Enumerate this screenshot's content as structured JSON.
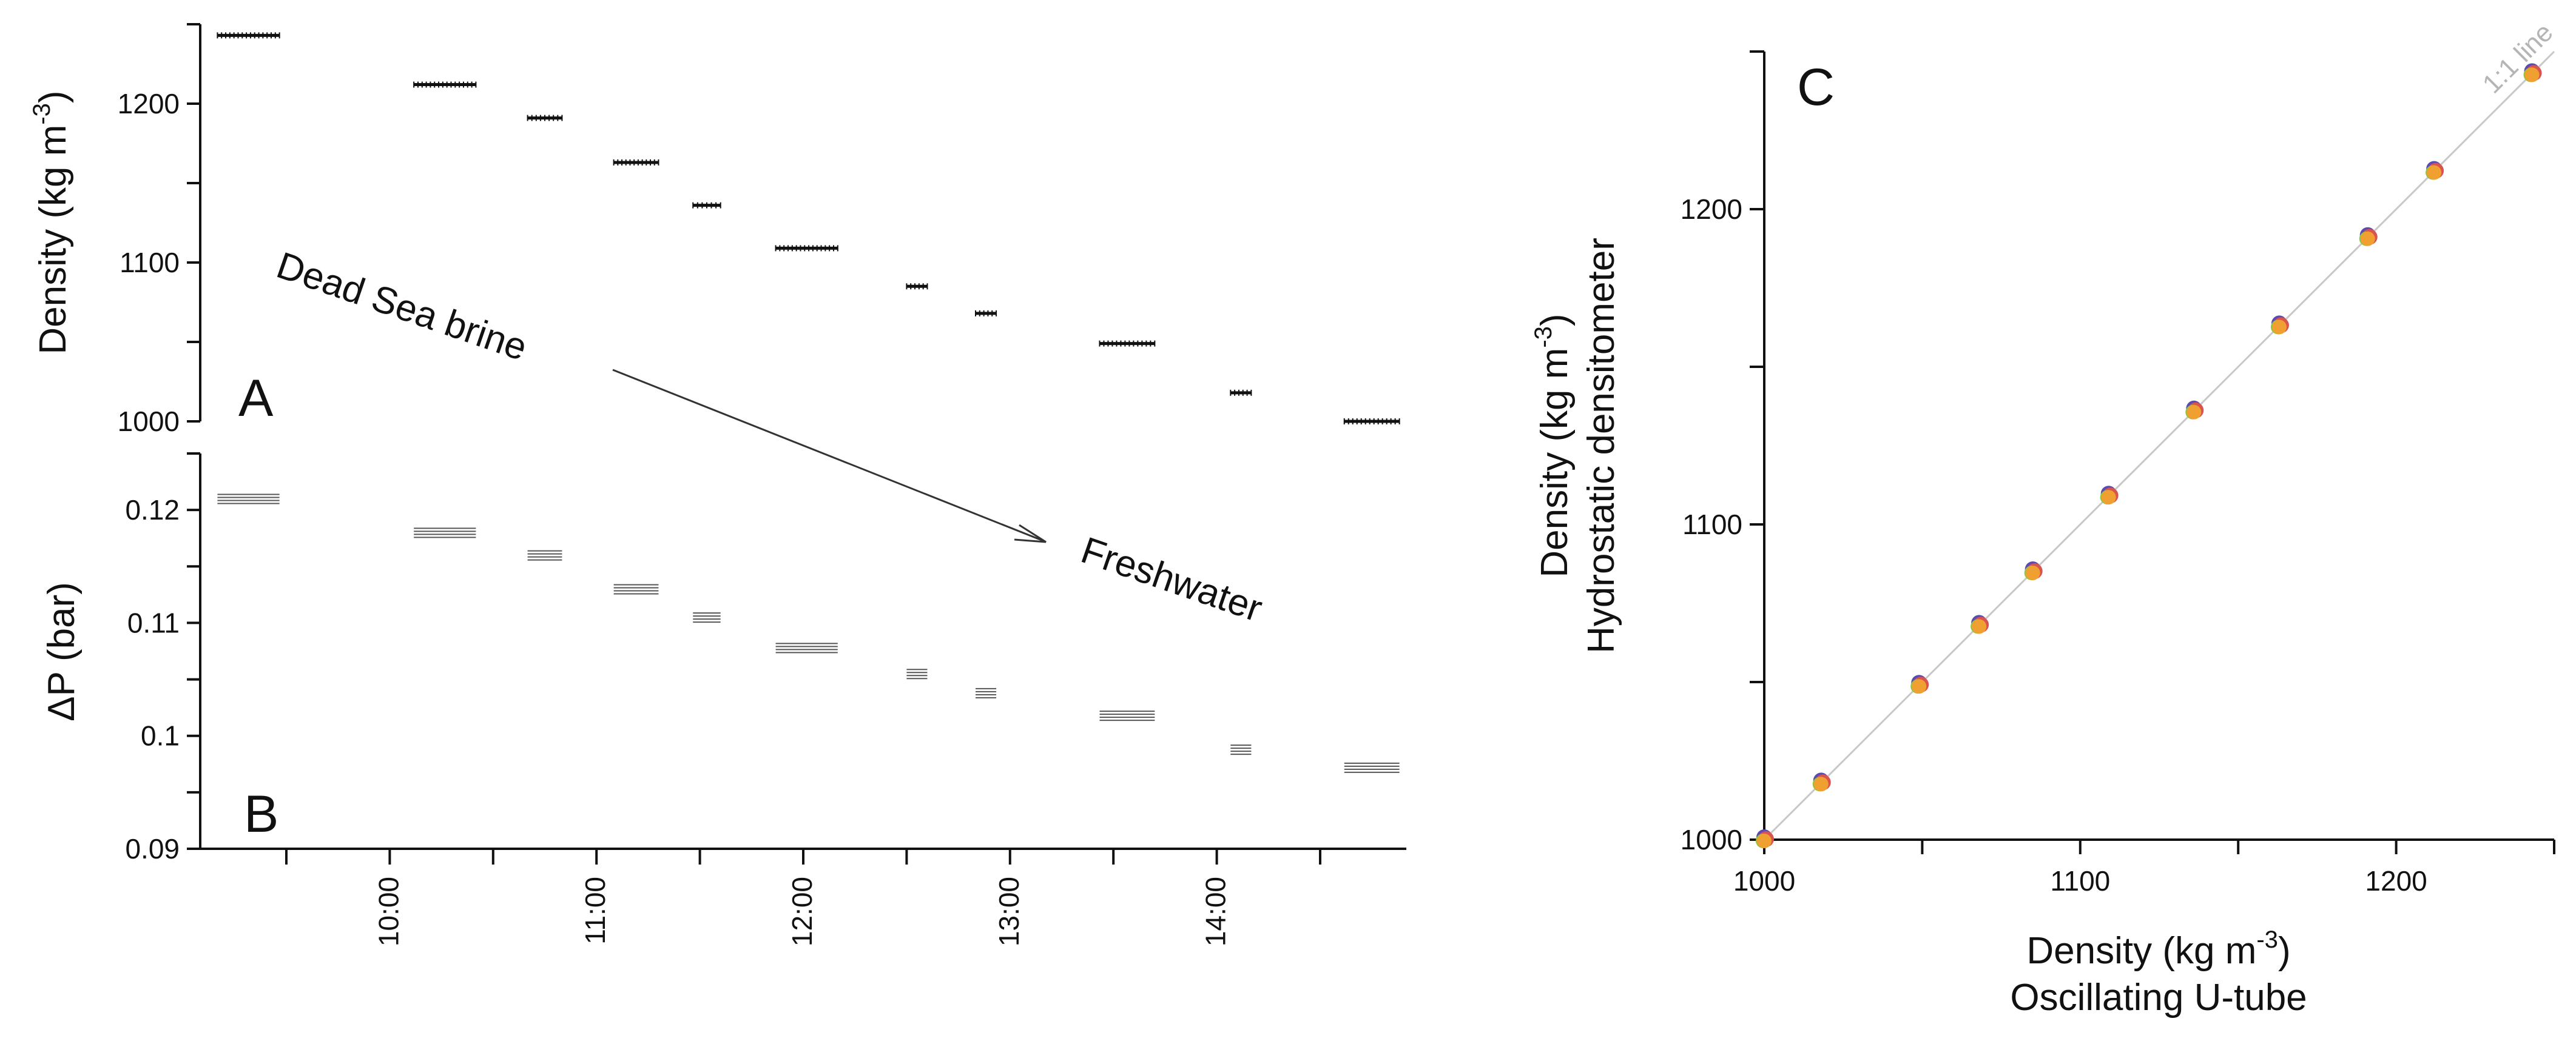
{
  "chart_data": [
    {
      "id": "A",
      "type": "scatter",
      "panel_label": "A",
      "ylabel_main": "Density (kg m",
      "ylabel_sup": "-3",
      "ylabel_end": ")",
      "ylim": [
        1000,
        1250
      ],
      "yticks": [
        1000,
        1100,
        1200
      ],
      "x_axis": "time (shared with B)",
      "annotations": {
        "start": "Dead Sea brine",
        "end": "Freshwater"
      },
      "groups": [
        {
          "t_start": "09:10",
          "t_end": "09:28",
          "value": 1243
        },
        {
          "t_start": "10:07",
          "t_end": "10:25",
          "value": 1212
        },
        {
          "t_start": "10:40",
          "t_end": "10:50",
          "value": 1191
        },
        {
          "t_start": "11:05",
          "t_end": "11:18",
          "value": 1163
        },
        {
          "t_start": "11:28",
          "t_end": "11:36",
          "value": 1136
        },
        {
          "t_start": "11:52",
          "t_end": "12:10",
          "value": 1109
        },
        {
          "t_start": "12:30",
          "t_end": "12:36",
          "value": 1085
        },
        {
          "t_start": "12:50",
          "t_end": "12:56",
          "value": 1068
        },
        {
          "t_start": "13:26",
          "t_end": "13:42",
          "value": 1049
        },
        {
          "t_start": "14:04",
          "t_end": "14:10",
          "value": 1018
        },
        {
          "t_start": "14:37",
          "t_end": "14:53",
          "value": 1000
        }
      ]
    },
    {
      "id": "B",
      "type": "scatter",
      "panel_label": "B",
      "ylabel": "ΔP (bar)",
      "ylim": [
        0.09,
        0.125
      ],
      "yticks": [
        "0.09",
        "0.1",
        "0.11",
        "0.12"
      ],
      "xticks": [
        "10:00",
        "11:00",
        "12:00",
        "13:00",
        "14:00"
      ],
      "xtick_minutes": [
        600,
        660,
        720,
        780,
        840
      ],
      "xlim_minutes": [
        545,
        895
      ],
      "groups": [
        {
          "t_start": "09:10",
          "t_end": "09:28",
          "value": 0.121
        },
        {
          "t_start": "10:07",
          "t_end": "10:25",
          "value": 0.118
        },
        {
          "t_start": "10:40",
          "t_end": "10:50",
          "value": 0.116
        },
        {
          "t_start": "11:05",
          "t_end": "11:18",
          "value": 0.113
        },
        {
          "t_start": "11:28",
          "t_end": "11:36",
          "value": 0.1105
        },
        {
          "t_start": "11:52",
          "t_end": "12:10",
          "value": 0.1078
        },
        {
          "t_start": "12:30",
          "t_end": "12:36",
          "value": 0.1055
        },
        {
          "t_start": "12:50",
          "t_end": "12:56",
          "value": 0.1038
        },
        {
          "t_start": "13:26",
          "t_end": "13:42",
          "value": 0.1018
        },
        {
          "t_start": "14:04",
          "t_end": "14:10",
          "value": 0.0988
        },
        {
          "t_start": "14:37",
          "t_end": "14:53",
          "value": 0.0972
        }
      ]
    },
    {
      "id": "C",
      "type": "scatter",
      "panel_label": "C",
      "xlabel_line1_main": "Density (kg m",
      "xlabel_line1_sup": "-3",
      "xlabel_line1_end": ")",
      "xlabel_line2": "Oscillating U-tube",
      "ylabel_line1_main": "Density (kg m",
      "ylabel_line1_sup": "-3",
      "ylabel_line1_end": ")",
      "ylabel_line2": "Hydrostatic densitometer",
      "xlim": [
        1000,
        1250
      ],
      "ylim": [
        1000,
        1250
      ],
      "xticks": [
        1000,
        1100,
        1200
      ],
      "yticks": [
        1000,
        1100,
        1200
      ],
      "reference_line": {
        "label": "1:1 line",
        "color": "#c8c8c8"
      },
      "series_colors": [
        "#5b4bb0",
        "#d9534f",
        "#8cc63f",
        "#f0a030"
      ],
      "x": [
        1000,
        1018,
        1049,
        1068,
        1085,
        1109,
        1136,
        1163,
        1191,
        1212,
        1243
      ],
      "y": [
        1000,
        1018,
        1049,
        1068,
        1085,
        1109,
        1136,
        1163,
        1191,
        1212,
        1243
      ]
    }
  ]
}
